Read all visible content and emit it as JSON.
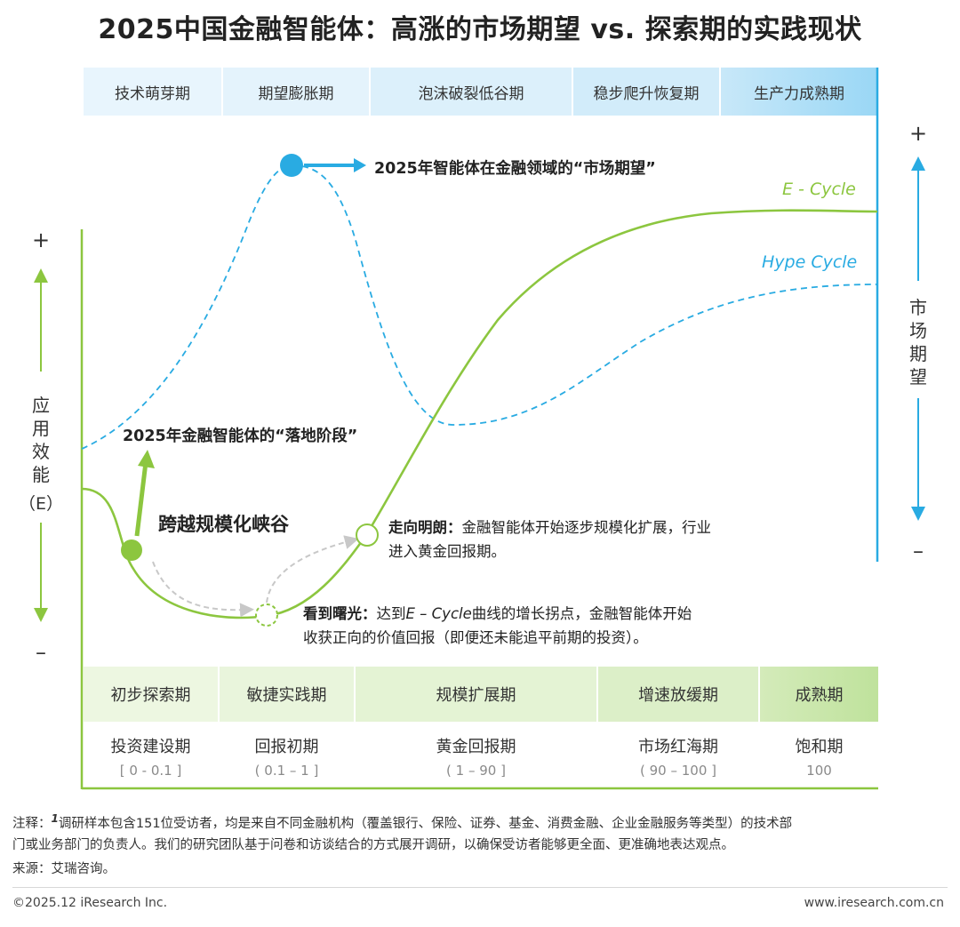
{
  "title": "2025中国金融智能体：高涨的市场期望 vs. 探索期的实践现状",
  "hype_phases": [
    "技术萌芽期",
    "期望膨胀期",
    "泡沫破裂低谷期",
    "稳步爬升恢复期",
    "生产力成熟期"
  ],
  "e_phases": [
    {
      "phase": "初步探索期",
      "name": "投资建设期",
      "range": "[ 0 - 0.1 ]"
    },
    {
      "phase": "敏捷实践期",
      "name": "回报初期",
      "range": "( 0.1 – 1 ]"
    },
    {
      "phase": "规模扩展期",
      "name": "黄金回报期",
      "range": "( 1 – 90 ]"
    },
    {
      "phase": "增速放缓期",
      "name": "市场红海期",
      "range": "( 90 – 100 ]"
    },
    {
      "phase": "成熟期",
      "name": "饱和期",
      "range": "100"
    }
  ],
  "left_axis": {
    "plus": "+",
    "minus": "–",
    "label_chars": [
      "应",
      "用",
      "效",
      "能"
    ],
    "label_suffix": "（E）"
  },
  "right_axis": {
    "plus": "+",
    "minus": "–",
    "label_chars": [
      "市",
      "场",
      "期",
      "望"
    ]
  },
  "curves": {
    "e_cycle": "E - Cycle",
    "hype_cycle": "Hype Cycle"
  },
  "labels": {
    "market_expectation": "2025年智能体在金融领域的“市场期望”",
    "landing_stage": "2025年金融智能体的“落地阶段”",
    "chasm": "跨越规模化峡谷"
  },
  "annotations": {
    "bright_title": "走向明朗：",
    "bright_text_1": "金融智能体开始逐步规模化扩展，行业",
    "bright_text_2": "进入黄金回报期。",
    "dawn_title": "看到曙光：",
    "dawn_text_1a": "达到",
    "dawn_text_1b": "E – Cycle",
    "dawn_text_1c": "曲线的增长拐点，金融智能体开始",
    "dawn_text_2": "收获正向的价值回报（即便还未能追平前期的投资）。"
  },
  "footer": {
    "note_prefix": "注释：",
    "note_sup": "1",
    "note_line1": "调研样本包含151位受访者，均是来自不同金融机构（覆盖银行、保险、证券、基金、消费金融、企业金融服务等类型）的技术部",
    "note_line2": "门或业务部门的负责人。我们的研究团队基于问卷和访谈结合的方式展开调研，以确保受访者能够更全面、更准确地表达观点。",
    "source": "来源：艾瑞咨询。",
    "copyright": "©2025.12 iResearch Inc.",
    "website": "www.iresearch.com.cn"
  },
  "colors": {
    "e_cycle": "#8cc63f",
    "hype_cycle": "#29abe2",
    "blue_band": "#e3f3fc",
    "green_band": "#eaf5dc"
  }
}
